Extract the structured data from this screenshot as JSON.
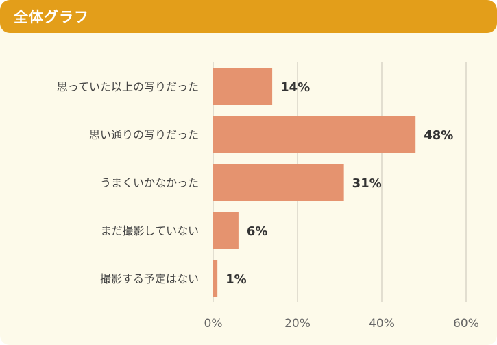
{
  "header": {
    "title": "全体グラフ"
  },
  "chart_data": {
    "type": "bar",
    "orientation": "horizontal",
    "title": "全体グラフ",
    "categories": [
      "思っていた以上の写りだった",
      "思い通りの写りだった",
      "うまくいかなかった",
      "まだ撮影していない",
      "撮影する予定はない"
    ],
    "values": [
      14,
      48,
      31,
      6,
      1
    ],
    "value_labels": [
      "14%",
      "48%",
      "31%",
      "6%",
      "1%"
    ],
    "xlim": [
      0,
      60
    ],
    "x_ticks": [
      0,
      20,
      40,
      60
    ],
    "x_tick_labels": [
      "0%",
      "20%",
      "40%",
      "60%"
    ],
    "grid": true,
    "colors": {
      "bar": "#e5936f",
      "header": "#e39e1a",
      "background": "#fdfaea",
      "grid": "#d9d5c8"
    }
  }
}
